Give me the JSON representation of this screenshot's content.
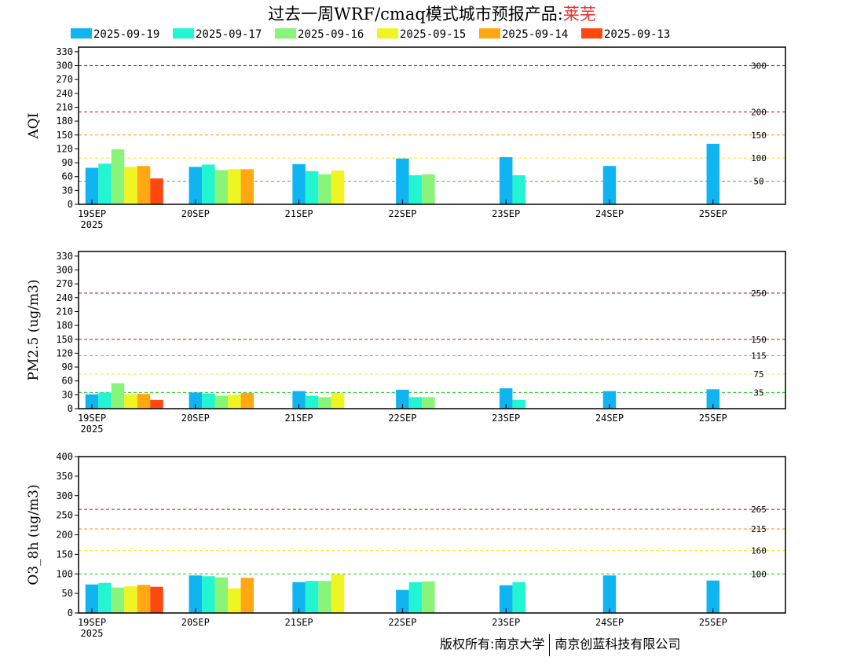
{
  "title": {
    "prefix": "过去一周WRF/cmaq模式城市预报产品:",
    "city": "莱芜"
  },
  "legend": [
    {
      "label": "2025-09-19",
      "color": "#10b4f0"
    },
    {
      "label": "2025-09-17",
      "color": "#22f5d2"
    },
    {
      "label": "2025-09-16",
      "color": "#88f57a"
    },
    {
      "label": "2025-09-15",
      "color": "#eef522"
    },
    {
      "label": "2025-09-14",
      "color": "#ffa814"
    },
    {
      "label": "2025-09-13",
      "color": "#ff4810"
    }
  ],
  "copyright": {
    "left": "版权所有:南京大学",
    "right": "南京创蓝科技有限公司"
  },
  "chart_data": [
    {
      "type": "bar",
      "ylabel": "AQI",
      "ylim": [
        0,
        340
      ],
      "yticks": [
        0,
        30,
        60,
        90,
        120,
        150,
        180,
        210,
        240,
        270,
        300,
        330
      ],
      "xticks": [
        "19SEP",
        "20SEP",
        "21SEP",
        "22SEP",
        "23SEP",
        "24SEP",
        "25SEP"
      ],
      "xsublabel": "2025",
      "thresholds": [
        {
          "value": 50,
          "label": "50",
          "color": "#22cc22"
        },
        {
          "value": 100,
          "label": "100",
          "color": "#eeee22"
        },
        {
          "value": 150,
          "label": "150",
          "color": "#ee9922"
        },
        {
          "value": 200,
          "label": "200",
          "color": "#cc1111"
        },
        {
          "value": 300,
          "label": "300",
          "color": "#aa1155"
        }
      ],
      "series": [
        {
          "name": "2025-09-19",
          "values": [
            79,
            81,
            87,
            99,
            102,
            83,
            131
          ]
        },
        {
          "name": "2025-09-17",
          "values": [
            88,
            86,
            72,
            63,
            63,
            null,
            null
          ]
        },
        {
          "name": "2025-09-16",
          "values": [
            119,
            74,
            65,
            65,
            null,
            null,
            null
          ]
        },
        {
          "name": "2025-09-15",
          "values": [
            81,
            76,
            73,
            null,
            null,
            null,
            null
          ]
        },
        {
          "name": "2025-09-14",
          "values": [
            83,
            76,
            null,
            null,
            null,
            null,
            null
          ]
        },
        {
          "name": "2025-09-13",
          "values": [
            56,
            null,
            null,
            null,
            null,
            null,
            null
          ]
        }
      ]
    },
    {
      "type": "bar",
      "ylabel": "PM2.5 (ug/m3)",
      "ylim": [
        0,
        340
      ],
      "yticks": [
        0,
        30,
        60,
        90,
        120,
        150,
        180,
        210,
        240,
        270,
        300,
        330
      ],
      "xticks": [
        "19SEP",
        "20SEP",
        "21SEP",
        "22SEP",
        "23SEP",
        "24SEP",
        "25SEP"
      ],
      "xsublabel": "2025",
      "thresholds": [
        {
          "value": 35,
          "label": "35",
          "color": "#22cc22"
        },
        {
          "value": 75,
          "label": "75",
          "color": "#eeee22"
        },
        {
          "value": 115,
          "label": "115",
          "color": "#ee9922"
        },
        {
          "value": 150,
          "label": "150",
          "color": "#cc1111"
        },
        {
          "value": 250,
          "label": "250",
          "color": "#aa1155"
        }
      ],
      "series": [
        {
          "name": "2025-09-19",
          "values": [
            31,
            35,
            38,
            41,
            44,
            38,
            42
          ]
        },
        {
          "name": "2025-09-17",
          "values": [
            35,
            33,
            28,
            25,
            19,
            null,
            null
          ]
        },
        {
          "name": "2025-09-16",
          "values": [
            55,
            28,
            25,
            25,
            null,
            null,
            null
          ]
        },
        {
          "name": "2025-09-15",
          "values": [
            31,
            30,
            34,
            null,
            null,
            null,
            null
          ]
        },
        {
          "name": "2025-09-14",
          "values": [
            32,
            34,
            null,
            null,
            null,
            null,
            null
          ]
        },
        {
          "name": "2025-09-13",
          "values": [
            19,
            null,
            null,
            null,
            null,
            null,
            null
          ]
        }
      ]
    },
    {
      "type": "bar",
      "ylabel": "O3_8h (ug/m3)",
      "ylim": [
        0,
        400
      ],
      "yticks": [
        0,
        50,
        100,
        150,
        200,
        250,
        300,
        350,
        400
      ],
      "xticks": [
        "19SEP",
        "20SEP",
        "21SEP",
        "22SEP",
        "23SEP",
        "24SEP",
        "25SEP"
      ],
      "xsublabel": "2025",
      "thresholds": [
        {
          "value": 100,
          "label": "100",
          "color": "#22cc22"
        },
        {
          "value": 160,
          "label": "160",
          "color": "#eeee22"
        },
        {
          "value": 215,
          "label": "215",
          "color": "#ee9922"
        },
        {
          "value": 265,
          "label": "265",
          "color": "#cc1111"
        }
      ],
      "series": [
        {
          "name": "2025-09-19",
          "values": [
            73,
            96,
            79,
            59,
            71,
            96,
            83
          ]
        },
        {
          "name": "2025-09-17",
          "values": [
            77,
            94,
            82,
            79,
            79,
            null,
            null
          ]
        },
        {
          "name": "2025-09-16",
          "values": [
            65,
            91,
            82,
            81,
            null,
            null,
            null
          ]
        },
        {
          "name": "2025-09-15",
          "values": [
            68,
            63,
            99,
            null,
            null,
            null,
            null
          ]
        },
        {
          "name": "2025-09-14",
          "values": [
            72,
            90,
            null,
            null,
            null,
            null,
            null
          ]
        },
        {
          "name": "2025-09-13",
          "values": [
            67,
            null,
            null,
            null,
            null,
            null,
            null
          ]
        }
      ]
    }
  ]
}
